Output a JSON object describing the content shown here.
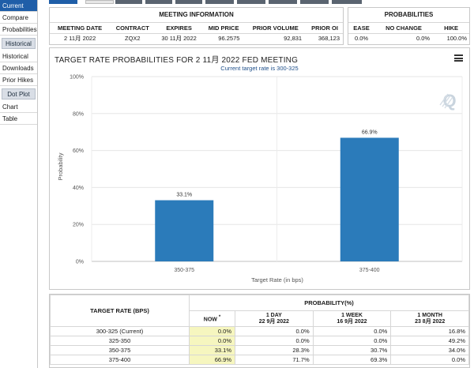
{
  "sidebar": {
    "items_top": [
      {
        "label": "Current",
        "active": true
      },
      {
        "label": "Compare",
        "active": false
      },
      {
        "label": "Probabilities",
        "active": false
      }
    ],
    "historical_header": "Historical",
    "items_historical": [
      "Historical",
      "Downloads",
      "Prior Hikes"
    ],
    "dotplot_header": "Dot Plot",
    "items_dotplot": [
      "Chart",
      "Table"
    ]
  },
  "meeting_info": {
    "title": "MEETING INFORMATION",
    "headers": [
      "MEETING DATE",
      "CONTRACT",
      "EXPIRES",
      "MID PRICE",
      "PRIOR VOLUME",
      "PRIOR OI"
    ],
    "values": [
      "2 11月 2022",
      "ZQX2",
      "30 11月 2022",
      "96.2575",
      "92,831",
      "368,123"
    ]
  },
  "probabilities": {
    "title": "PROBABILITIES",
    "headers": [
      "EASE",
      "NO CHANGE",
      "HIKE"
    ],
    "values": [
      "0.0%",
      "0.0%",
      "100.0%"
    ]
  },
  "chart_data": {
    "type": "bar",
    "title": "TARGET RATE PROBABILITIES FOR 2 11月 2022 FED MEETING",
    "subtitle": "Current target rate is 300-325",
    "categories": [
      "350-375",
      "375-400"
    ],
    "values": [
      33.1,
      66.9
    ],
    "value_labels": [
      "33.1%",
      "66.9%"
    ],
    "ylim": [
      0,
      100
    ],
    "yticks": [
      0,
      20,
      40,
      60,
      80,
      100
    ],
    "ytick_labels": [
      "0%",
      "20%",
      "40%",
      "60%",
      "80%",
      "100%"
    ],
    "xlabel": "Target Rate (in bps)",
    "ylabel": "Probability",
    "bar_color": "#2b7bba",
    "grid": true,
    "watermark": "Q"
  },
  "prob_table": {
    "rate_header": "TARGET RATE (BPS)",
    "group_header": "PROBABILITY(%)",
    "columns": [
      {
        "label": "NOW",
        "mark": "*",
        "date": ""
      },
      {
        "label": "1 DAY",
        "mark": "",
        "date": "22 9月 2022"
      },
      {
        "label": "1 WEEK",
        "mark": "",
        "date": "16 9月 2022"
      },
      {
        "label": "1 MONTH",
        "mark": "",
        "date": "23 8月 2022"
      }
    ],
    "rows": [
      {
        "rate": "300-325 (Current)",
        "values": [
          "0.0%",
          "0.0%",
          "0.0%",
          "16.8%"
        ]
      },
      {
        "rate": "325-350",
        "values": [
          "0.0%",
          "0.0%",
          "0.0%",
          "49.2%"
        ]
      },
      {
        "rate": "350-375",
        "values": [
          "33.1%",
          "28.3%",
          "30.7%",
          "34.0%"
        ]
      },
      {
        "rate": "375-400",
        "values": [
          "66.9%",
          "71.7%",
          "69.3%",
          "0.0%"
        ]
      }
    ]
  }
}
